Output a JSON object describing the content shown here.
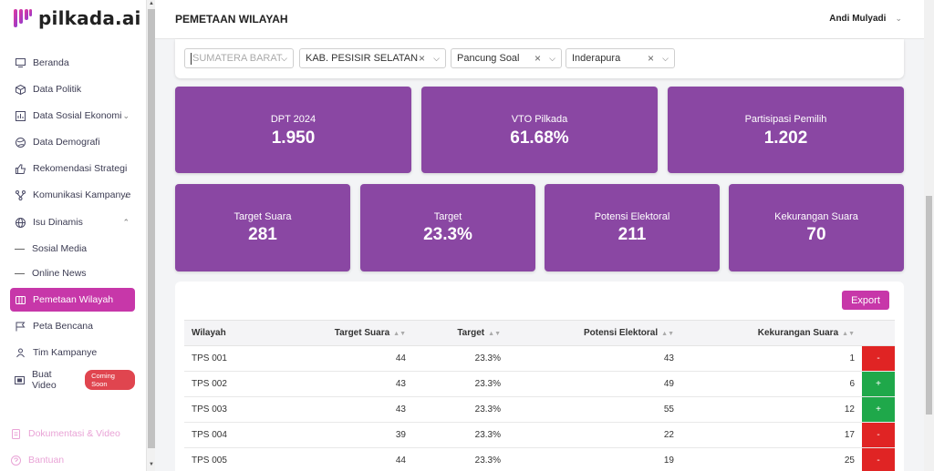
{
  "app": {
    "logo_text": "pilkada.ai"
  },
  "sidebar": {
    "items": [
      {
        "label": "Beranda",
        "icon": "monitor-icon"
      },
      {
        "label": "Data Politik",
        "icon": "cube-icon"
      },
      {
        "label": "Data Sosial Ekonomi",
        "icon": "chart-box-icon"
      },
      {
        "label": "Data Demografi",
        "icon": "globe-icon"
      },
      {
        "label": "Rekomendasi Strategi",
        "icon": "thumbs-up-icon"
      },
      {
        "label": "Komunikasi Kampanye",
        "icon": "network-icon"
      },
      {
        "label": "Isu Dinamis",
        "icon": "globe-icon"
      }
    ],
    "subitems": [
      {
        "label": "Sosial Media"
      },
      {
        "label": "Online News"
      }
    ],
    "active_item": {
      "label": "Pemetaan Wilayah",
      "icon": "map-icon"
    },
    "items_after": [
      {
        "label": "Peta Bencana",
        "icon": "flag-icon"
      },
      {
        "label": "Tim Kampanye",
        "icon": "users-icon"
      },
      {
        "label": "Buat Video",
        "icon": "film-icon",
        "badge": "Coming Soon"
      }
    ],
    "footer": [
      {
        "label": "Dokumentasi & Video",
        "icon": "document-icon"
      },
      {
        "label": "Bantuan",
        "icon": "help-icon"
      }
    ]
  },
  "header": {
    "title": "PEMETAAN WILAYAH",
    "user": "Andi Mulyadi"
  },
  "filters": {
    "province": "SUMATERA BARAT",
    "regency": "KAB. PESISIR SELATAN",
    "district": "Pancung Soal",
    "village": "Inderapura"
  },
  "stats_top": [
    {
      "label": "DPT 2024",
      "value": "1.950"
    },
    {
      "label": "VTO Pilkada",
      "value": "61.68%"
    },
    {
      "label": "Partisipasi Pemilih",
      "value": "1.202"
    }
  ],
  "stats_bottom": [
    {
      "label": "Target Suara",
      "value": "281"
    },
    {
      "label": "Target",
      "value": "23.3%"
    },
    {
      "label": "Potensi Elektoral",
      "value": "211"
    },
    {
      "label": "Kekurangan Suara",
      "value": "70"
    }
  ],
  "table": {
    "export_label": "Export",
    "headers": [
      "Wilayah",
      "Target Suara",
      "Target",
      "Potensi Elektoral",
      "Kekurangan Suara"
    ],
    "rows": [
      {
        "wilayah": "TPS 001",
        "target_suara": "44",
        "target": "23.3%",
        "potensi": "43",
        "kekurangan": "1",
        "action": "-"
      },
      {
        "wilayah": "TPS 002",
        "target_suara": "43",
        "target": "23.3%",
        "potensi": "49",
        "kekurangan": "6",
        "action": "+"
      },
      {
        "wilayah": "TPS 003",
        "target_suara": "43",
        "target": "23.3%",
        "potensi": "55",
        "kekurangan": "12",
        "action": "+"
      },
      {
        "wilayah": "TPS 004",
        "target_suara": "39",
        "target": "23.3%",
        "potensi": "22",
        "kekurangan": "17",
        "action": "-"
      },
      {
        "wilayah": "TPS 005",
        "target_suara": "44",
        "target": "23.3%",
        "potensi": "19",
        "kekurangan": "25",
        "action": "-"
      }
    ]
  },
  "colors": {
    "accent": "#c737a9",
    "card": "#8a47a3",
    "negative": "#e02424",
    "positive": "#1fa84a"
  }
}
